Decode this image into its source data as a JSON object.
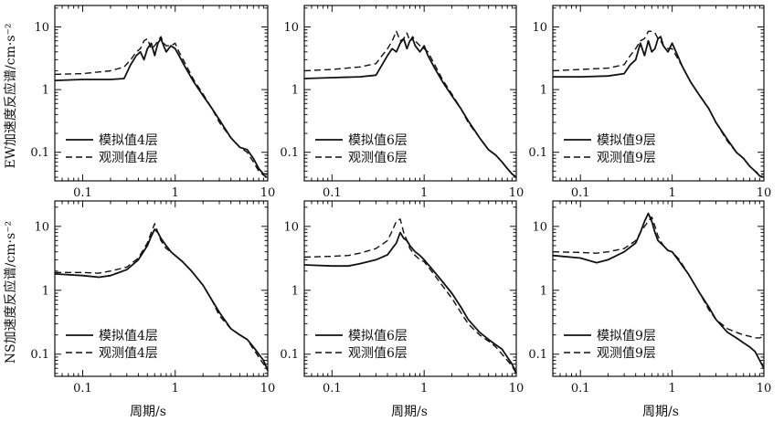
{
  "figure": {
    "ylabel_top": "EW加速度反应谱/cm·s⁻²",
    "ylabel_bottom": "NS加速度反应谱/cm·s⁻²",
    "xlabel": "周期/s"
  },
  "chart_data": [
    {
      "type": "line",
      "component": "EW",
      "xscale": "log",
      "yscale": "log",
      "xlim": [
        0.05,
        10
      ],
      "ylim": [
        0.035,
        22
      ],
      "xticks": [
        "0.1",
        "1",
        "10"
      ],
      "yticks": [
        "0.1",
        "1",
        "10"
      ],
      "legend_position": "bottom-left",
      "series": [
        {
          "name": "模拟值4层",
          "style": "solid",
          "x": [
            0.05,
            0.1,
            0.2,
            0.28,
            0.33,
            0.38,
            0.42,
            0.46,
            0.5,
            0.55,
            0.6,
            0.65,
            0.7,
            0.75,
            0.8,
            0.9,
            1.0,
            1.1,
            1.3,
            1.6,
            2.0,
            2.5,
            3.0,
            4.0,
            5.0,
            6.0,
            7.0,
            8.0,
            9.0,
            10.0
          ],
          "y": [
            1.4,
            1.45,
            1.45,
            1.5,
            2.5,
            3.5,
            4.0,
            3.0,
            4.5,
            5.5,
            3.5,
            5.5,
            6.5,
            5.0,
            4.0,
            5.0,
            4.5,
            3.5,
            2.2,
            1.3,
            0.8,
            0.5,
            0.33,
            0.17,
            0.12,
            0.11,
            0.08,
            0.055,
            0.045,
            0.045
          ]
        },
        {
          "name": "观测值4层",
          "style": "dashed",
          "x": [
            0.05,
            0.1,
            0.2,
            0.28,
            0.33,
            0.38,
            0.42,
            0.46,
            0.5,
            0.55,
            0.6,
            0.65,
            0.7,
            0.75,
            0.8,
            0.9,
            1.0,
            1.1,
            1.3,
            1.6,
            2.0,
            2.5,
            3.0,
            4.0,
            5.0,
            6.0,
            7.0,
            8.0,
            9.0,
            10.0
          ],
          "y": [
            1.75,
            1.8,
            2.0,
            2.3,
            3.0,
            4.0,
            4.5,
            6.0,
            6.5,
            4.5,
            5.0,
            6.0,
            7.0,
            5.5,
            5.0,
            5.0,
            5.5,
            4.0,
            2.5,
            1.4,
            0.85,
            0.5,
            0.3,
            0.17,
            0.12,
            0.1,
            0.07,
            0.05,
            0.043,
            0.04
          ]
        }
      ]
    },
    {
      "type": "line",
      "component": "EW",
      "xscale": "log",
      "yscale": "log",
      "xlim": [
        0.05,
        10
      ],
      "ylim": [
        0.035,
        22
      ],
      "xticks": [
        "0.1",
        "1",
        "10"
      ],
      "yticks": [
        "0.1",
        "1",
        "10"
      ],
      "legend_position": "bottom-left",
      "series": [
        {
          "name": "模拟值6层",
          "style": "solid",
          "x": [
            0.05,
            0.1,
            0.2,
            0.3,
            0.35,
            0.4,
            0.45,
            0.5,
            0.55,
            0.6,
            0.65,
            0.7,
            0.75,
            0.8,
            0.9,
            1.0,
            1.1,
            1.3,
            1.6,
            2.0,
            2.5,
            3.0,
            4.0,
            5.0,
            6.0,
            7.0,
            8.0,
            9.0,
            10.0
          ],
          "y": [
            1.5,
            1.55,
            1.6,
            1.7,
            2.5,
            3.5,
            4.5,
            4.0,
            5.5,
            6.5,
            4.5,
            6.0,
            6.5,
            5.0,
            4.0,
            5.0,
            3.5,
            2.2,
            1.3,
            0.8,
            0.5,
            0.32,
            0.17,
            0.11,
            0.09,
            0.07,
            0.055,
            0.045,
            0.04
          ]
        },
        {
          "name": "观测值6层",
          "style": "dashed",
          "x": [
            0.05,
            0.1,
            0.2,
            0.3,
            0.35,
            0.4,
            0.45,
            0.5,
            0.55,
            0.6,
            0.65,
            0.7,
            0.75,
            0.8,
            0.9,
            1.0,
            1.1,
            1.3,
            1.6,
            2.0,
            2.5,
            3.0,
            4.0,
            5.0,
            6.0,
            7.0,
            8.0,
            9.0,
            10.0
          ],
          "y": [
            2.0,
            2.1,
            2.3,
            2.6,
            3.5,
            4.5,
            6.0,
            8.5,
            6.0,
            6.5,
            8.0,
            6.0,
            7.0,
            6.0,
            5.0,
            4.5,
            4.0,
            2.5,
            1.4,
            0.85,
            0.5,
            0.3,
            0.17,
            0.11,
            0.09,
            0.07,
            0.055,
            0.045,
            0.04
          ]
        }
      ]
    },
    {
      "type": "line",
      "component": "EW",
      "xscale": "log",
      "yscale": "log",
      "xlim": [
        0.05,
        10
      ],
      "ylim": [
        0.035,
        22
      ],
      "xticks": [
        "0.1",
        "1",
        "10"
      ],
      "yticks": [
        "0.1",
        "1",
        "10"
      ],
      "legend_position": "bottom-left",
      "series": [
        {
          "name": "模拟值9层",
          "style": "solid",
          "x": [
            0.05,
            0.1,
            0.2,
            0.3,
            0.35,
            0.4,
            0.45,
            0.5,
            0.55,
            0.6,
            0.65,
            0.7,
            0.75,
            0.8,
            0.9,
            1.0,
            1.1,
            1.3,
            1.6,
            2.0,
            2.5,
            3.0,
            4.0,
            5.0,
            6.0,
            7.0,
            8.0,
            9.0,
            10.0
          ],
          "y": [
            1.6,
            1.6,
            1.65,
            1.8,
            2.5,
            3.0,
            5.5,
            3.5,
            6.0,
            4.0,
            4.5,
            6.5,
            7.0,
            5.0,
            4.0,
            5.5,
            4.0,
            2.3,
            1.3,
            0.8,
            0.5,
            0.3,
            0.16,
            0.1,
            0.08,
            0.06,
            0.05,
            0.042,
            0.04
          ]
        },
        {
          "name": "观测值9层",
          "style": "dashed",
          "x": [
            0.05,
            0.1,
            0.2,
            0.3,
            0.35,
            0.4,
            0.45,
            0.5,
            0.55,
            0.6,
            0.65,
            0.7,
            0.75,
            0.8,
            0.9,
            1.0,
            1.1,
            1.3,
            1.6,
            2.0,
            2.5,
            3.0,
            4.0,
            5.0,
            6.0,
            7.0,
            8.0,
            9.0,
            10.0
          ],
          "y": [
            2.0,
            2.1,
            2.2,
            2.5,
            3.5,
            4.5,
            6.0,
            6.5,
            8.5,
            8.5,
            8.0,
            6.5,
            6.0,
            5.0,
            4.5,
            4.5,
            3.5,
            2.3,
            1.3,
            0.8,
            0.5,
            0.3,
            0.15,
            0.1,
            0.08,
            0.06,
            0.05,
            0.045,
            0.045
          ]
        }
      ]
    },
    {
      "type": "line",
      "component": "NS",
      "xscale": "log",
      "yscale": "log",
      "xlim": [
        0.05,
        10
      ],
      "ylim": [
        0.045,
        25
      ],
      "xticks": [
        "0.1",
        "1",
        "10"
      ],
      "yticks": [
        "0.1",
        "1",
        "10"
      ],
      "legend_position": "bottom-left",
      "series": [
        {
          "name": "模拟值4层",
          "style": "solid",
          "x": [
            0.05,
            0.1,
            0.15,
            0.2,
            0.3,
            0.4,
            0.5,
            0.55,
            0.6,
            0.65,
            0.7,
            0.8,
            0.9,
            1.0,
            1.2,
            1.5,
            2.0,
            2.5,
            3.0,
            4.0,
            5.0,
            6.0,
            7.0,
            8.0,
            9.0,
            10.0
          ],
          "y": [
            1.8,
            1.7,
            1.6,
            1.7,
            2.1,
            3.0,
            5.0,
            7.0,
            9.0,
            8.0,
            6.5,
            5.0,
            4.0,
            3.5,
            2.8,
            2.0,
            1.2,
            0.7,
            0.45,
            0.25,
            0.2,
            0.17,
            0.13,
            0.1,
            0.08,
            0.055
          ]
        },
        {
          "name": "观测值4层",
          "style": "dashed",
          "x": [
            0.05,
            0.1,
            0.15,
            0.2,
            0.3,
            0.4,
            0.5,
            0.55,
            0.6,
            0.65,
            0.7,
            0.8,
            0.9,
            1.0,
            1.2,
            1.5,
            2.0,
            2.5,
            3.0,
            4.0,
            5.0,
            6.0,
            7.0,
            8.0,
            9.0,
            10.0
          ],
          "y": [
            1.9,
            1.9,
            1.85,
            2.0,
            2.3,
            3.2,
            5.5,
            8.0,
            11.0,
            8.0,
            6.0,
            4.5,
            4.0,
            3.5,
            2.8,
            2.0,
            1.2,
            0.7,
            0.4,
            0.25,
            0.2,
            0.17,
            0.12,
            0.09,
            0.07,
            0.06
          ]
        }
      ]
    },
    {
      "type": "line",
      "component": "NS",
      "xscale": "log",
      "yscale": "log",
      "xlim": [
        0.05,
        10
      ],
      "ylim": [
        0.045,
        25
      ],
      "xticks": [
        "0.1",
        "1",
        "10"
      ],
      "yticks": [
        "0.1",
        "1",
        "10"
      ],
      "legend_position": "bottom-left",
      "series": [
        {
          "name": "模拟值6层",
          "style": "solid",
          "x": [
            0.05,
            0.1,
            0.15,
            0.2,
            0.3,
            0.4,
            0.45,
            0.5,
            0.55,
            0.6,
            0.65,
            0.7,
            0.8,
            0.9,
            1.0,
            1.2,
            1.5,
            2.0,
            2.5,
            3.0,
            4.0,
            5.0,
            6.0,
            7.0,
            8.0,
            9.0,
            10.0
          ],
          "y": [
            2.5,
            2.4,
            2.4,
            2.6,
            3.0,
            3.6,
            4.5,
            5.5,
            8.0,
            6.5,
            6.0,
            5.0,
            4.0,
            3.5,
            3.0,
            2.2,
            1.5,
            0.9,
            0.55,
            0.35,
            0.22,
            0.17,
            0.14,
            0.12,
            0.09,
            0.07,
            0.05
          ]
        },
        {
          "name": "观测值6层",
          "style": "dashed",
          "x": [
            0.05,
            0.1,
            0.15,
            0.2,
            0.3,
            0.4,
            0.45,
            0.5,
            0.55,
            0.6,
            0.65,
            0.7,
            0.8,
            0.9,
            1.0,
            1.2,
            1.5,
            2.0,
            2.5,
            3.0,
            4.0,
            5.0,
            6.0,
            7.0,
            8.0,
            9.0,
            10.0
          ],
          "y": [
            3.3,
            3.4,
            3.5,
            3.8,
            4.5,
            6.0,
            8.5,
            12.0,
            13.0,
            8.0,
            6.0,
            4.5,
            3.5,
            3.0,
            2.8,
            2.0,
            1.3,
            0.75,
            0.45,
            0.3,
            0.2,
            0.16,
            0.13,
            0.1,
            0.08,
            0.065,
            0.05
          ]
        }
      ]
    },
    {
      "type": "line",
      "component": "NS",
      "xscale": "log",
      "yscale": "log",
      "xlim": [
        0.05,
        10
      ],
      "ylim": [
        0.045,
        25
      ],
      "xticks": [
        "0.1",
        "1",
        "10"
      ],
      "yticks": [
        "0.1",
        "1",
        "10"
      ],
      "legend_position": "bottom-left",
      "series": [
        {
          "name": "模拟值9层",
          "style": "solid",
          "x": [
            0.05,
            0.1,
            0.15,
            0.2,
            0.3,
            0.4,
            0.45,
            0.5,
            0.55,
            0.6,
            0.65,
            0.7,
            0.8,
            0.9,
            1.0,
            1.2,
            1.5,
            2.0,
            2.5,
            3.0,
            4.0,
            5.0,
            6.0,
            7.0,
            8.0,
            9.0,
            10.0
          ],
          "y": [
            3.5,
            3.2,
            2.7,
            3.0,
            4.0,
            5.5,
            8.0,
            12.0,
            16.0,
            12.0,
            8.0,
            6.0,
            5.0,
            4.2,
            4.0,
            2.8,
            1.8,
            0.9,
            0.55,
            0.35,
            0.22,
            0.18,
            0.15,
            0.13,
            0.11,
            0.08,
            0.06
          ]
        },
        {
          "name": "观测值9层",
          "style": "dashed",
          "x": [
            0.05,
            0.1,
            0.15,
            0.2,
            0.3,
            0.4,
            0.45,
            0.5,
            0.55,
            0.6,
            0.65,
            0.7,
            0.8,
            0.9,
            1.0,
            1.2,
            1.5,
            2.0,
            2.5,
            3.0,
            4.0,
            5.0,
            6.0,
            7.0,
            8.0,
            9.0,
            10.0
          ],
          "y": [
            4.0,
            3.9,
            3.8,
            4.0,
            4.5,
            6.0,
            8.0,
            10.0,
            12.0,
            14.0,
            10.0,
            7.0,
            5.0,
            4.2,
            4.0,
            3.0,
            1.8,
            0.9,
            0.5,
            0.35,
            0.25,
            0.22,
            0.2,
            0.19,
            0.18,
            0.18,
            0.19
          ]
        }
      ]
    }
  ]
}
